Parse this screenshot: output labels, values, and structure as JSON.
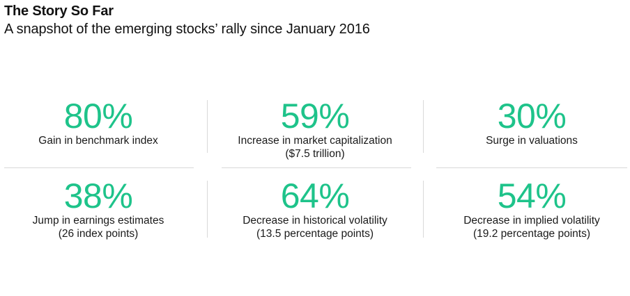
{
  "header": {
    "title": "The Story So Far",
    "subtitle": "A snapshot of the emerging stocks’ rally since January 2016"
  },
  "accent_color": "#1ec38a",
  "stats": [
    {
      "value": "80%",
      "label": "Gain in benchmark index",
      "sublabel": ""
    },
    {
      "value": "59%",
      "label": "Increase in market capitalization",
      "sublabel": "($7.5 trillion)"
    },
    {
      "value": "30%",
      "label": "Surge in valuations",
      "sublabel": ""
    },
    {
      "value": "38%",
      "label": "Jump in earnings estimates",
      "sublabel": "(26 index points)"
    },
    {
      "value": "64%",
      "label": "Decrease in historical volatility",
      "sublabel": "(13.5 percentage points)"
    },
    {
      "value": "54%",
      "label": "Decrease in implied volatility",
      "sublabel": "(19.2 percentage points)"
    }
  ]
}
